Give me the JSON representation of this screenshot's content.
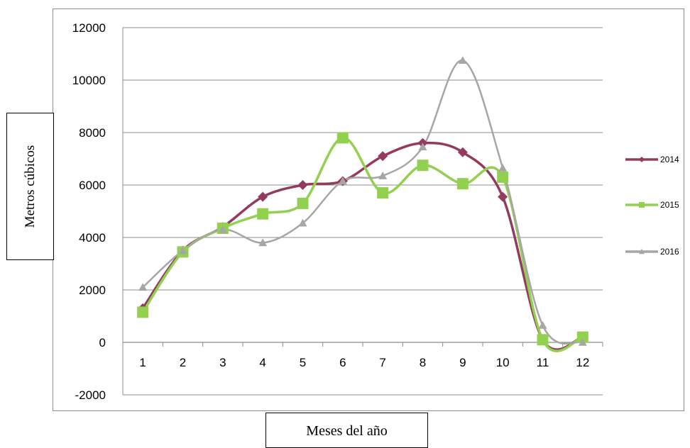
{
  "chart_data": {
    "type": "line",
    "title": "",
    "xlabel": "Meses del año",
    "ylabel": "Metros cúbicos",
    "categories": [
      "1",
      "2",
      "3",
      "4",
      "5",
      "6",
      "7",
      "8",
      "9",
      "10",
      "11",
      "12"
    ],
    "yticks": [
      "12000",
      "10000",
      "8000",
      "6000",
      "4000",
      "2000",
      "0",
      "-2000"
    ],
    "ylim": [
      -2000,
      12000
    ],
    "grid": true,
    "smooth": true,
    "legend_position": "right",
    "series": [
      {
        "name": "2014",
        "color": "#943a5e",
        "marker": "diamond",
        "values": [
          1300,
          3500,
          4400,
          5550,
          6000,
          6150,
          7100,
          7600,
          7250,
          5550,
          100,
          200
        ]
      },
      {
        "name": "2015",
        "color": "#92d050",
        "marker": "square",
        "values": [
          1150,
          3450,
          4350,
          4900,
          5300,
          7800,
          5700,
          6750,
          6050,
          6300,
          100,
          200
        ]
      },
      {
        "name": "2016",
        "color": "#a6a6a6",
        "marker": "triangle",
        "values": [
          2100,
          3500,
          4300,
          3800,
          4550,
          6150,
          6350,
          7450,
          10750,
          6650,
          650,
          0
        ]
      }
    ]
  }
}
